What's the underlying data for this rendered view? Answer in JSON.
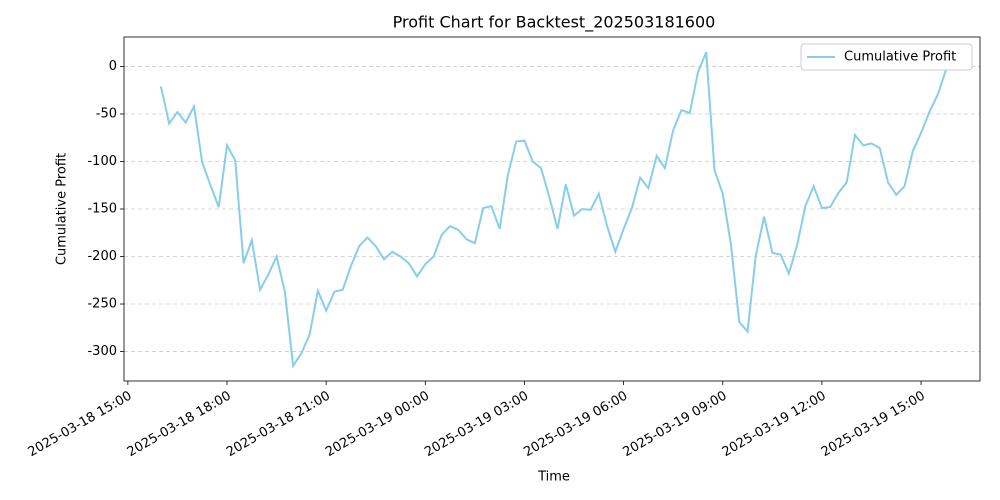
{
  "chart_data": {
    "type": "line",
    "title": "Profit Chart for Backtest_202503181600",
    "xlabel": "Time",
    "ylabel": "Cumulative Profit",
    "x": [
      "2025-03-18 16:00",
      "2025-03-18 16:15",
      "2025-03-18 16:30",
      "2025-03-18 16:45",
      "2025-03-18 17:00",
      "2025-03-18 17:15",
      "2025-03-18 17:30",
      "2025-03-18 17:45",
      "2025-03-18 18:00",
      "2025-03-18 18:15",
      "2025-03-18 18:30",
      "2025-03-18 18:45",
      "2025-03-18 19:00",
      "2025-03-18 19:15",
      "2025-03-18 19:30",
      "2025-03-18 19:45",
      "2025-03-18 20:00",
      "2025-03-18 20:15",
      "2025-03-18 20:30",
      "2025-03-18 20:45",
      "2025-03-18 21:00",
      "2025-03-18 21:15",
      "2025-03-18 21:30",
      "2025-03-18 21:45",
      "2025-03-18 22:00",
      "2025-03-18 22:15",
      "2025-03-18 22:30",
      "2025-03-18 22:45",
      "2025-03-18 23:00",
      "2025-03-18 23:15",
      "2025-03-18 23:30",
      "2025-03-18 23:45",
      "2025-03-19 00:00",
      "2025-03-19 00:15",
      "2025-03-19 00:30",
      "2025-03-19 00:45",
      "2025-03-19 01:00",
      "2025-03-19 01:15",
      "2025-03-19 01:30",
      "2025-03-19 01:45",
      "2025-03-19 02:00",
      "2025-03-19 02:15",
      "2025-03-19 02:30",
      "2025-03-19 02:45",
      "2025-03-19 03:00",
      "2025-03-19 03:15",
      "2025-03-19 03:30",
      "2025-03-19 03:45",
      "2025-03-19 04:00",
      "2025-03-19 04:15",
      "2025-03-19 04:30",
      "2025-03-19 04:45",
      "2025-03-19 05:00",
      "2025-03-19 05:15",
      "2025-03-19 05:30",
      "2025-03-19 05:45",
      "2025-03-19 06:00",
      "2025-03-19 06:15",
      "2025-03-19 06:30",
      "2025-03-19 06:45",
      "2025-03-19 07:00",
      "2025-03-19 07:15",
      "2025-03-19 07:30",
      "2025-03-19 07:45",
      "2025-03-19 08:00",
      "2025-03-19 08:15",
      "2025-03-19 08:30",
      "2025-03-19 08:45",
      "2025-03-19 09:00",
      "2025-03-19 09:15",
      "2025-03-19 09:30",
      "2025-03-19 09:45",
      "2025-03-19 10:00",
      "2025-03-19 10:15",
      "2025-03-19 10:30",
      "2025-03-19 10:45",
      "2025-03-19 11:00",
      "2025-03-19 11:15",
      "2025-03-19 11:30",
      "2025-03-19 11:45",
      "2025-03-19 12:00",
      "2025-03-19 12:15",
      "2025-03-19 12:30",
      "2025-03-19 12:45",
      "2025-03-19 13:00",
      "2025-03-19 13:15",
      "2025-03-19 13:30",
      "2025-03-19 13:45",
      "2025-03-19 14:00",
      "2025-03-19 14:15",
      "2025-03-19 14:30",
      "2025-03-19 14:45",
      "2025-03-19 15:00",
      "2025-03-19 15:15",
      "2025-03-19 15:30",
      "2025-03-19 15:45"
    ],
    "series": [
      {
        "name": "Cumulative Profit",
        "color": "#87ceeb",
        "values": [
          -21,
          -60,
          -48,
          -59,
          -42,
          -101,
          -125,
          -148,
          -83,
          -99,
          -207,
          -183,
          -235,
          -219,
          -200,
          -237,
          -315,
          -302,
          -282,
          -236,
          -257,
          -237,
          -235,
          -210,
          -189,
          -180,
          -189,
          -203,
          -195,
          -200,
          -207,
          -221,
          -208,
          -200,
          -177,
          -168,
          -172,
          -182,
          -186,
          -149,
          -147,
          -171,
          -114,
          -79,
          -78,
          -100,
          -107,
          -137,
          -171,
          -124,
          -157,
          -150,
          -151,
          -134,
          -168,
          -195,
          -171,
          -149,
          -117,
          -128,
          -94,
          -107,
          -67,
          -46,
          -49,
          -6,
          15,
          -109,
          -134,
          -188,
          -269,
          -279,
          -199,
          -158,
          -196,
          -198,
          -218,
          -188,
          -147,
          -126,
          -149,
          -148,
          -133,
          -122,
          -72,
          -83,
          -81,
          -86,
          -122,
          -135,
          -126,
          -89,
          -70,
          -48,
          -30,
          -4
        ]
      }
    ],
    "xlim": [
      "2025-03-18 14:53",
      "2025-03-19 16:47"
    ],
    "xticks": [
      "2025-03-18 15:00",
      "2025-03-18 18:00",
      "2025-03-18 21:00",
      "2025-03-19 00:00",
      "2025-03-19 03:00",
      "2025-03-19 06:00",
      "2025-03-19 09:00",
      "2025-03-19 12:00",
      "2025-03-19 15:00"
    ],
    "ylim": [
      -331,
      31
    ],
    "yticks": [
      -300,
      -250,
      -200,
      -150,
      -100,
      -50,
      0
    ],
    "grid": "y",
    "legend": "upper right"
  }
}
